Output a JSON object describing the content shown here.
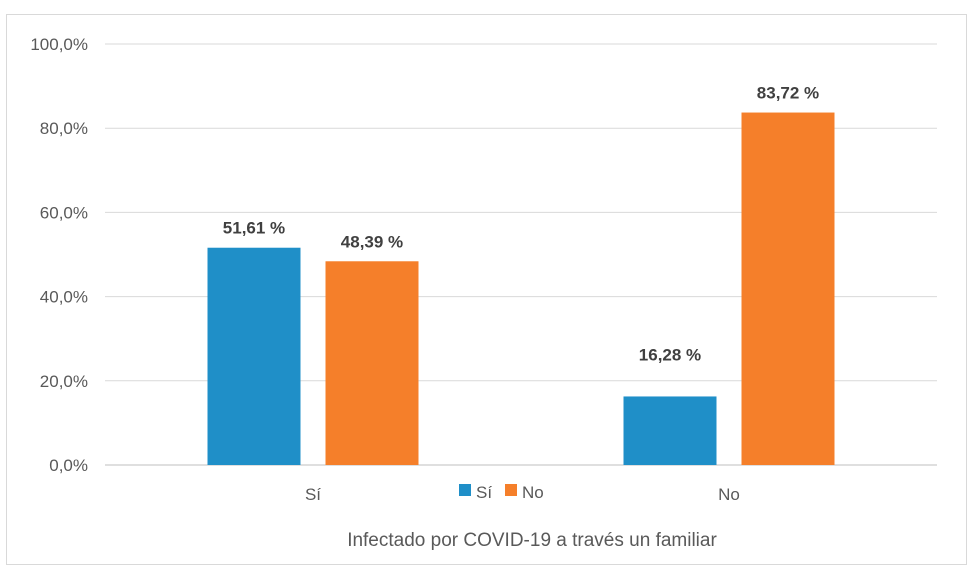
{
  "chart_data": {
    "type": "bar",
    "title": "",
    "xlabel": "Infectado por COVID-19 a través un familiar",
    "ylabel": "",
    "categories": [
      "Sí",
      "No"
    ],
    "series": [
      {
        "name": "Sí",
        "color": "#1f8fc8",
        "values": [
          51.61,
          16.28
        ],
        "labels": [
          "51,61 %",
          "16,28  %"
        ]
      },
      {
        "name": "No",
        "color": "#f57f2a",
        "values": [
          48.39,
          83.72
        ],
        "labels": [
          "48,39 %",
          "83,72 %"
        ]
      }
    ],
    "ylim": [
      0,
      100
    ],
    "yticks": [
      0,
      20,
      40,
      60,
      80,
      100
    ],
    "ytick_labels": [
      "0,0%",
      "20,0%",
      "40,0%",
      "60,0%",
      "80,0%",
      "100,0%"
    ],
    "grid": true,
    "legend_position": "bottom"
  }
}
